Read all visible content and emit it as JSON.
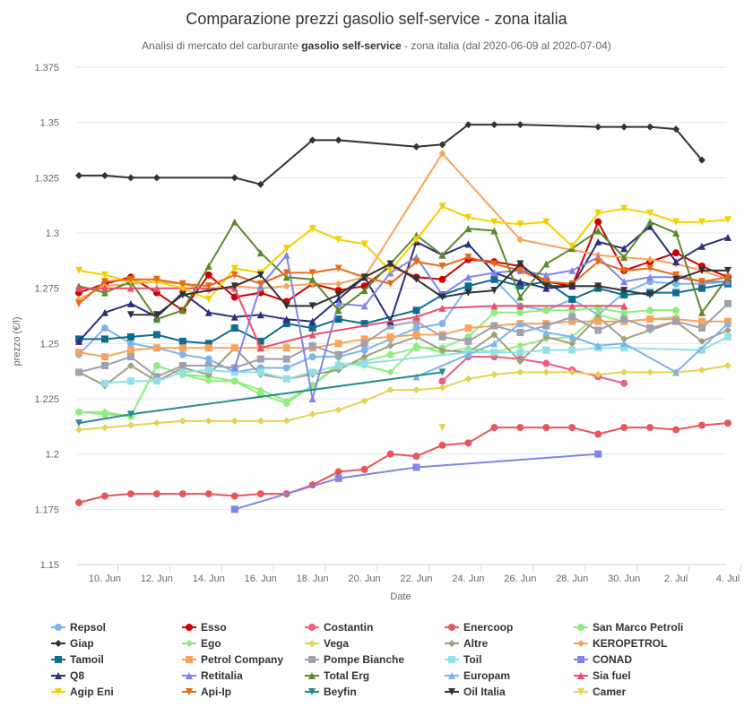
{
  "chart_data": {
    "type": "line",
    "title": "Comparazione prezzi gasolio self-service - zona italia",
    "subtitle_prefix": "Analisi di mercato del carburante ",
    "subtitle_strong": "gasolio self-service",
    "subtitle_suffix": " - zona italia (dal 2020-06-09 al 2020-07-04)",
    "xlabel": "Date",
    "ylabel": "prezzo (€/l)",
    "ylim": [
      1.15,
      1.375
    ],
    "yticks": [
      1.15,
      1.175,
      1.2,
      1.225,
      1.25,
      1.275,
      1.3,
      1.325,
      1.35,
      1.375
    ],
    "ytick_labels": [
      "1.15",
      "1.175",
      "1.2",
      "1.225",
      "1.25",
      "1.275",
      "1.3",
      "1.325",
      "1.35",
      "1.375"
    ],
    "x": [
      "2020-06-09",
      "2020-06-10",
      "2020-06-11",
      "2020-06-12",
      "2020-06-13",
      "2020-06-14",
      "2020-06-15",
      "2020-06-16",
      "2020-06-17",
      "2020-06-18",
      "2020-06-19",
      "2020-06-20",
      "2020-06-21",
      "2020-06-22",
      "2020-06-23",
      "2020-06-24",
      "2020-06-25",
      "2020-06-26",
      "2020-06-27",
      "2020-06-28",
      "2020-06-29",
      "2020-06-30",
      "2020-07-01",
      "2020-07-02",
      "2020-07-03",
      "2020-07-04"
    ],
    "xticks": [
      "2020-06-10",
      "2020-06-12",
      "2020-06-14",
      "2020-06-16",
      "2020-06-18",
      "2020-06-20",
      "2020-06-22",
      "2020-06-24",
      "2020-06-26",
      "2020-06-28",
      "2020-06-30",
      "2020-07-02",
      "2020-07-04"
    ],
    "xtick_labels": [
      "10. Jun",
      "12. Jun",
      "14. Jun",
      "16. Jun",
      "18. Jun",
      "20. Jun",
      "22. Jun",
      "24. Jun",
      "26. Jun",
      "28. Jun",
      "30. Jun",
      "2. Jul",
      "4. Jul"
    ],
    "legend_position": "bottom",
    "grid": true,
    "series": [
      {
        "name": "Repsol",
        "color": "#7cb5ec",
        "marker": "circle",
        "values": [
          1.245,
          1.257,
          1.25,
          1.248,
          1.245,
          1.243,
          1.237,
          1.239,
          1.239,
          1.244,
          1.244,
          1.247,
          1.252,
          1.257,
          1.259,
          1.276,
          1.279,
          1.267,
          1.265,
          1.27,
          1.263,
          1.273,
          1.278,
          1.277,
          1.277,
          1.278
        ]
      },
      {
        "name": "Esso",
        "color": "#d00000",
        "marker": "circle",
        "values": [
          1.273,
          1.277,
          1.28,
          1.273,
          1.265,
          1.281,
          1.271,
          1.273,
          1.269,
          1.277,
          1.274,
          1.276,
          1.285,
          1.28,
          1.279,
          1.288,
          1.287,
          1.285,
          1.278,
          1.276,
          1.305,
          1.283,
          1.287,
          1.291,
          1.285,
          1.28
        ]
      },
      {
        "name": "Costantin",
        "color": "#f15c80",
        "marker": "circle",
        "values": [
          null,
          null,
          null,
          null,
          null,
          null,
          null,
          null,
          null,
          null,
          null,
          null,
          null,
          null,
          1.233,
          1.244,
          1.244,
          1.243,
          1.241,
          1.238,
          1.235,
          1.232,
          null,
          null,
          null,
          null
        ]
      },
      {
        "name": "Enercoop",
        "color": "#e8555a",
        "marker": "circle",
        "values": [
          1.178,
          1.181,
          1.182,
          1.182,
          1.182,
          1.182,
          1.181,
          1.182,
          1.182,
          1.186,
          1.192,
          1.193,
          1.2,
          1.199,
          1.204,
          1.205,
          1.212,
          1.212,
          1.212,
          1.212,
          1.209,
          1.212,
          1.212,
          1.211,
          1.213,
          1.214
        ]
      },
      {
        "name": "San Marco Petroli",
        "color": "#90ed7d",
        "marker": "circle",
        "values": [
          1.219,
          1.218,
          1.217,
          1.24,
          1.236,
          1.235,
          1.233,
          1.227,
          1.223,
          1.231,
          1.24,
          1.242,
          1.245,
          1.248,
          1.248,
          1.253,
          1.264,
          1.264,
          1.265,
          1.265,
          1.266,
          1.264,
          1.265,
          1.265,
          null,
          null
        ]
      },
      {
        "name": "Giap",
        "color": "#333333",
        "marker": "diamond",
        "values": [
          1.326,
          1.326,
          1.325,
          1.325,
          null,
          null,
          1.325,
          1.322,
          null,
          1.342,
          1.342,
          null,
          null,
          1.339,
          1.34,
          1.349,
          1.349,
          1.349,
          null,
          null,
          1.348,
          1.348,
          1.348,
          1.347,
          1.333,
          null
        ]
      },
      {
        "name": "Ego",
        "color": "#90ed7d",
        "marker": "diamond",
        "values": [
          1.219,
          1.219,
          1.217,
          1.24,
          1.236,
          1.233,
          1.233,
          1.229,
          1.224,
          1.231,
          1.241,
          1.24,
          1.237,
          1.249,
          1.246,
          1.248,
          1.246,
          1.249,
          1.252,
          1.253,
          1.263,
          1.26,
          1.261,
          1.262,
          null,
          null
        ]
      },
      {
        "name": "Vega",
        "color": "#e4d354",
        "marker": "diamond",
        "values": [
          1.211,
          1.212,
          1.213,
          1.214,
          1.215,
          1.215,
          1.215,
          1.215,
          1.215,
          1.218,
          1.22,
          1.224,
          1.229,
          1.229,
          1.23,
          1.234,
          1.236,
          1.237,
          1.237,
          1.237,
          1.236,
          1.237,
          1.237,
          1.237,
          1.238,
          1.24
        ]
      },
      {
        "name": "Altre",
        "color": "#a0a080",
        "marker": "diamond",
        "values": [
          1.237,
          1.231,
          1.24,
          1.233,
          1.239,
          1.236,
          1.248,
          1.236,
          1.234,
          1.236,
          1.238,
          1.244,
          1.249,
          1.253,
          1.247,
          1.246,
          1.254,
          1.242,
          1.253,
          1.25,
          1.262,
          1.252,
          1.256,
          1.26,
          1.251,
          1.256
        ]
      },
      {
        "name": "KEROPETROL",
        "color": "#f7a35c",
        "marker": "diamond",
        "values": [
          1.27,
          1.276,
          1.277,
          1.278,
          1.277,
          1.274,
          1.276,
          1.275,
          1.276,
          1.277,
          1.277,
          1.28,
          null,
          null,
          1.336,
          null,
          null,
          1.297,
          null,
          null,
          1.29,
          null,
          1.288,
          1.286,
          1.283,
          1.279
        ]
      },
      {
        "name": "Tamoil",
        "color": "#0e6d8c",
        "marker": "square",
        "values": [
          1.252,
          1.252,
          1.253,
          1.254,
          1.251,
          1.25,
          1.257,
          1.251,
          1.259,
          1.257,
          1.261,
          1.259,
          null,
          1.265,
          1.272,
          1.276,
          1.279,
          1.276,
          1.278,
          1.27,
          1.275,
          1.272,
          1.273,
          1.273,
          1.275,
          1.277
        ]
      },
      {
        "name": "Petrol Company",
        "color": "#f7a35c",
        "marker": "square",
        "values": [
          1.246,
          1.244,
          1.247,
          1.248,
          1.248,
          1.248,
          1.248,
          1.248,
          1.248,
          1.248,
          1.25,
          1.252,
          1.253,
          1.254,
          1.254,
          1.257,
          1.258,
          1.259,
          1.259,
          1.26,
          1.26,
          1.26,
          1.261,
          1.261,
          1.26,
          1.26
        ]
      },
      {
        "name": "Pompe Bianche",
        "color": "#a0a0b0",
        "marker": "square",
        "values": [
          1.237,
          1.24,
          1.244,
          1.235,
          1.24,
          1.24,
          1.239,
          1.243,
          1.243,
          1.249,
          1.245,
          1.25,
          1.258,
          1.26,
          1.253,
          1.251,
          1.258,
          1.255,
          1.258,
          1.262,
          1.256,
          1.261,
          1.257,
          1.26,
          1.257,
          1.268
        ]
      },
      {
        "name": "Toil",
        "color": "#90e0e8",
        "marker": "square",
        "values": [
          null,
          1.232,
          1.233,
          1.233,
          1.237,
          1.238,
          1.237,
          1.237,
          1.234,
          1.237,
          1.24,
          1.241,
          null,
          null,
          null,
          1.246,
          1.246,
          1.246,
          1.247,
          1.247,
          1.248,
          1.248,
          null,
          null,
          1.247,
          1.253
        ]
      },
      {
        "name": "CONAD",
        "color": "#8085e9",
        "marker": "square",
        "values": [
          null,
          null,
          null,
          null,
          null,
          null,
          1.175,
          null,
          null,
          null,
          1.189,
          null,
          null,
          1.194,
          null,
          null,
          null,
          null,
          null,
          null,
          1.2,
          null,
          null,
          null,
          null,
          null
        ]
      },
      {
        "name": "Q8",
        "color": "#2b2f80",
        "marker": "triangle",
        "values": [
          1.251,
          1.264,
          1.268,
          1.262,
          1.273,
          1.264,
          1.262,
          1.263,
          1.261,
          1.26,
          1.27,
          1.28,
          1.26,
          1.296,
          1.29,
          1.295,
          1.282,
          1.278,
          1.275,
          1.276,
          1.296,
          1.293,
          1.303,
          1.287,
          1.294,
          1.298
        ]
      },
      {
        "name": "Retitalia",
        "color": "#8085e9",
        "marker": "triangle",
        "values": [
          null,
          null,
          null,
          null,
          null,
          null,
          1.239,
          1.276,
          1.29,
          1.225,
          1.268,
          1.267,
          1.282,
          1.289,
          1.272,
          1.28,
          1.282,
          1.283,
          1.281,
          1.283,
          1.289,
          1.278,
          1.28,
          1.28,
          1.278,
          1.278
        ]
      },
      {
        "name": "Total Erg",
        "color": "#5b8a2b",
        "marker": "triangle",
        "values": [
          1.276,
          1.273,
          1.278,
          1.261,
          1.265,
          1.285,
          1.305,
          1.291,
          1.28,
          1.279,
          1.265,
          1.274,
          1.286,
          1.299,
          1.29,
          1.302,
          1.301,
          1.271,
          1.286,
          1.293,
          1.301,
          1.289,
          1.305,
          1.3,
          1.264,
          1.28
        ]
      },
      {
        "name": "Europam",
        "color": "#7cb5ec",
        "marker": "triangle",
        "values": [
          null,
          null,
          null,
          null,
          null,
          null,
          null,
          null,
          null,
          null,
          null,
          null,
          null,
          1.235,
          null,
          1.245,
          1.25,
          1.259,
          1.255,
          1.253,
          1.249,
          1.25,
          null,
          1.237,
          null,
          1.259
        ]
      },
      {
        "name": "Sia fuel",
        "color": "#e84f6f",
        "marker": "triangle",
        "values": [
          1.275,
          1.275,
          1.275,
          1.275,
          1.275,
          1.275,
          1.275,
          1.248,
          null,
          1.254,
          null,
          null,
          null,
          1.262,
          1.266,
          null,
          1.267,
          1.267,
          null,
          1.267,
          null,
          1.267,
          null,
          null,
          null,
          null
        ]
      },
      {
        "name": "Agip Eni",
        "color": "#f4d003",
        "marker": "triangle-down",
        "values": [
          1.283,
          1.281,
          1.278,
          1.278,
          1.275,
          1.27,
          1.284,
          1.282,
          1.293,
          1.302,
          1.297,
          1.295,
          1.283,
          1.297,
          1.312,
          1.307,
          1.305,
          1.304,
          1.305,
          1.294,
          1.309,
          1.311,
          1.309,
          1.305,
          1.305,
          1.306
        ]
      },
      {
        "name": "Api-Ip",
        "color": "#e86a17",
        "marker": "triangle-down",
        "values": [
          1.268,
          1.278,
          1.279,
          1.279,
          1.277,
          1.276,
          1.281,
          1.277,
          1.282,
          1.282,
          1.284,
          1.28,
          1.277,
          1.287,
          1.285,
          1.289,
          1.286,
          1.283,
          1.278,
          1.277,
          1.287,
          1.283,
          1.284,
          1.281,
          1.278,
          1.28
        ]
      },
      {
        "name": "Beyfin",
        "color": "#2a8a8e",
        "marker": "triangle-down",
        "values": [
          1.214,
          null,
          1.218,
          null,
          null,
          null,
          null,
          null,
          null,
          null,
          null,
          null,
          null,
          null,
          1.237,
          null,
          null,
          null,
          null,
          null,
          null,
          null,
          null,
          null,
          null,
          null
        ]
      },
      {
        "name": "Oil Italia",
        "color": "#333333",
        "marker": "triangle-down",
        "values": [
          null,
          null,
          1.263,
          1.263,
          1.272,
          null,
          1.276,
          1.281,
          1.267,
          1.267,
          1.272,
          1.28,
          1.286,
          1.279,
          1.271,
          1.273,
          1.274,
          1.286,
          1.276,
          1.276,
          1.276,
          1.274,
          1.272,
          1.279,
          1.283,
          1.283
        ]
      },
      {
        "name": "Camer",
        "color": "#e4d354",
        "marker": "triangle-down",
        "values": [
          null,
          null,
          null,
          null,
          null,
          null,
          null,
          null,
          null,
          null,
          null,
          null,
          null,
          null,
          1.212,
          null,
          null,
          null,
          null,
          null,
          null,
          null,
          null,
          null,
          null,
          null
        ]
      }
    ]
  }
}
